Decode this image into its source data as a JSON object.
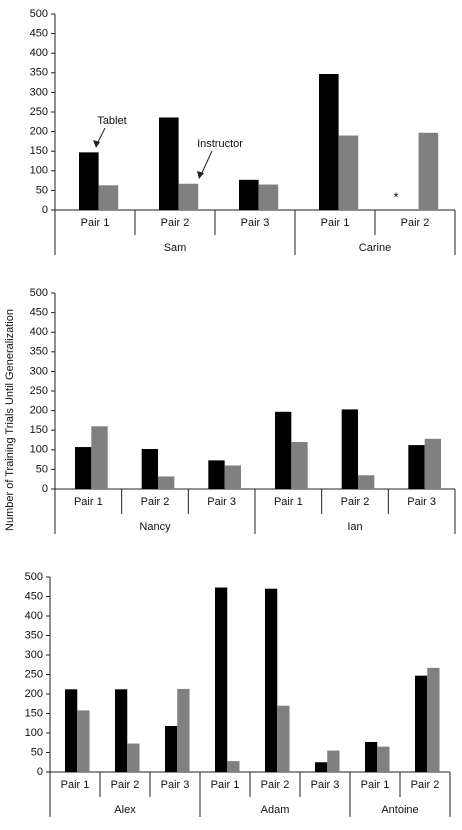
{
  "chart_data": [
    {
      "type": "bar",
      "groups": [
        {
          "name": "Sam",
          "categories": [
            "Pair 1",
            "Pair 2",
            "Pair 3"
          ]
        },
        {
          "name": "Carine",
          "categories": [
            "Pair 1",
            "Pair 2"
          ]
        }
      ],
      "series": [
        {
          "name": "Tablet",
          "color": "#000000",
          "values": [
            147,
            236,
            77,
            347,
            null
          ]
        },
        {
          "name": "Instructor",
          "color": "#808080",
          "values": [
            63,
            67,
            65,
            190,
            197
          ]
        }
      ],
      "annotations": [
        "*"
      ],
      "ylim": [
        0,
        500
      ],
      "yticks": [
        0,
        50,
        100,
        150,
        200,
        250,
        300,
        350,
        400,
        450,
        500
      ],
      "grid": false
    },
    {
      "type": "bar",
      "ylabel": "Number of Training Trials Until Generalization",
      "groups": [
        {
          "name": "Nancy",
          "categories": [
            "Pair 1",
            "Pair 2",
            "Pair 3"
          ]
        },
        {
          "name": "Ian",
          "categories": [
            "Pair 1",
            "Pair 2",
            "Pair 3"
          ]
        }
      ],
      "series": [
        {
          "color": "#000000",
          "values": [
            107,
            102,
            73,
            197,
            203,
            112
          ]
        },
        {
          "color": "#808080",
          "values": [
            160,
            32,
            60,
            120,
            35,
            128
          ]
        }
      ],
      "ylim": [
        0,
        500
      ],
      "yticks": [
        0,
        50,
        100,
        150,
        200,
        250,
        300,
        350,
        400,
        450,
        500
      ],
      "grid": false
    },
    {
      "type": "bar",
      "groups": [
        {
          "name": "Alex",
          "categories": [
            "Pair 1",
            "Pair 2",
            "Pair 3"
          ]
        },
        {
          "name": "Adam",
          "categories": [
            "Pair 1",
            "Pair 2",
            "Pair 3"
          ]
        },
        {
          "name": "Antoine",
          "categories": [
            "Pair 1",
            "Pair 2"
          ]
        }
      ],
      "series": [
        {
          "color": "#000000",
          "values": [
            212,
            212,
            118,
            473,
            470,
            25,
            77,
            247
          ]
        },
        {
          "color": "#808080",
          "values": [
            158,
            73,
            213,
            28,
            170,
            55,
            65,
            267
          ]
        }
      ],
      "ylim": [
        0,
        500
      ],
      "yticks": [
        0,
        50,
        100,
        150,
        200,
        250,
        300,
        350,
        400,
        450,
        500
      ],
      "grid": false
    }
  ]
}
